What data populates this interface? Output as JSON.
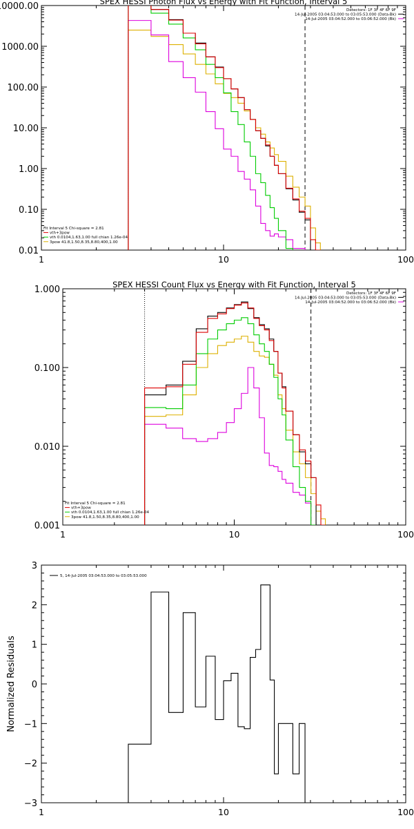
{
  "colors": {
    "data": "#000000",
    "total": "#dd0000",
    "vth": "#00cc00",
    "pow": "#ddb000",
    "bk": "#dd00dd"
  },
  "chart_data": [
    {
      "type": "line",
      "title": "SPEX HESSI Photon Flux vs Energy with Fit Function, Interval 5",
      "xscale": "log",
      "yscale": "log",
      "xlim": [
        1,
        100
      ],
      "ylim": [
        0.01,
        10000
      ],
      "xticklabels": [
        "1",
        "10",
        "100"
      ],
      "yticklabels": [
        "0.01",
        "0.10",
        "1.00",
        "10.00",
        "100.00",
        "1000.00",
        "10000.00"
      ],
      "header_right": [
        "Detectors: 1F 3F 4F 6F 9F",
        "14-Jul-2005 03:04:53.000 to 03:05:53.000 (Data-Bk)",
        "14-Jul-2005 03:04:52.000 to 03:06:52.000 (Bk)"
      ],
      "legend_left": [
        "Fit Interval 5   Chi-square = 2.81",
        "vth+3pow",
        "vth 0.0104,1.63,1.00  full chian 1.26e-04",
        "3pow 41.8,1.50,8.35,8.80,400,1.00"
      ],
      "edges": [
        3.0,
        3.5,
        4.0,
        4.5,
        5.0,
        5.5,
        6.0,
        6.5,
        7.0,
        7.5,
        8.0,
        8.5,
        9.0,
        9.5,
        10.0,
        11.0,
        12.0,
        13.0,
        14.0,
        15.0,
        16.0,
        17.0,
        18.0,
        19.0,
        20.0,
        22.0,
        24.0,
        26.0,
        28.0,
        30.0,
        32.0,
        34.0,
        36.0
      ],
      "vline_dotted": 3.0,
      "vline_dashed": 28.0,
      "series": [
        {
          "color_key": "data",
          "values": [
            12000,
            12000,
            8000,
            8000,
            4500,
            4500,
            2100,
            2100,
            1200,
            1200,
            550,
            550,
            310,
            310,
            160,
            90,
            55,
            28,
            16,
            8.5,
            5.5,
            3.6,
            2.0,
            1.2,
            0.75,
            0.32,
            0.17,
            0.085,
            0.055
          ]
        },
        {
          "color_key": "total",
          "values": [
            12000,
            12000,
            8000,
            8000,
            4400,
            4400,
            2100,
            2100,
            1150,
            1150,
            550,
            550,
            300,
            300,
            160,
            90,
            55,
            28,
            16,
            8.5,
            5.5,
            3.8,
            2.0,
            1.2,
            0.75,
            0.33,
            0.18,
            0.09,
            0.06,
            0.018,
            0.01
          ]
        },
        {
          "color_key": "vth",
          "values": [
            12000,
            12000,
            6500,
            6500,
            3500,
            3500,
            1600,
            1600,
            820,
            820,
            360,
            360,
            170,
            170,
            72,
            25,
            12,
            4.5,
            2.0,
            0.75,
            0.45,
            0.22,
            0.11,
            0.06,
            0.03,
            0.011,
            0.006
          ]
        },
        {
          "color_key": "pow",
          "values": [
            2500,
            2500,
            1750,
            1750,
            1100,
            1100,
            650,
            650,
            360,
            360,
            210,
            210,
            120,
            120,
            70,
            55,
            40,
            26,
            16,
            10,
            7,
            4.5,
            3.2,
            2.2,
            1.5,
            0.65,
            0.35,
            0.2,
            0.12,
            0.035,
            0.015,
            0.008
          ]
        },
        {
          "color_key": "bk",
          "values": [
            4300,
            4300,
            1900,
            1900,
            420,
            420,
            170,
            170,
            75,
            75,
            25,
            25,
            9.5,
            9.5,
            3.0,
            2.0,
            0.85,
            0.55,
            0.3,
            0.12,
            0.045,
            0.03,
            0.022,
            0.025,
            0.021,
            0.018,
            0.011,
            0.011,
            0.009
          ]
        }
      ]
    },
    {
      "type": "line",
      "title": "SPEX HESSI Count Flux vs Energy with Fit Function, Interval 5",
      "xscale": "log",
      "yscale": "log",
      "xlim": [
        1,
        100
      ],
      "ylim": [
        0.001,
        1.0
      ],
      "xticklabels": [
        "1",
        "10",
        "100"
      ],
      "yticklabels": [
        "0.001",
        "0.010",
        "0.100",
        "1.000"
      ],
      "header_right": [
        "Detectors: 1F 3F 4F 6F 9F",
        "14-Jul-2005 03:04:53.000 to 03:05:53.000 (Data-Bk)",
        "14-Jul-2005 03:04:52.000 to 03:06:52.000 (Bk)"
      ],
      "legend_left": [
        "Fit Interval 5   Chi-square = 2.81",
        "vth+3pow",
        "vth 0.0104,1.63,1.00  full chian 1.26e-04",
        "3pow 41.8,1.50,8.35,8.80,400,1.00"
      ],
      "edges": [
        3.0,
        3.5,
        4.0,
        4.5,
        5.0,
        5.5,
        6.0,
        6.5,
        7.0,
        7.5,
        8.0,
        8.5,
        9.0,
        9.5,
        10.0,
        11.0,
        12.0,
        13.0,
        14.0,
        15.0,
        16.0,
        17.0,
        18.0,
        19.0,
        20.0,
        22.0,
        24.0,
        26.0,
        28.0,
        30.0,
        32.0,
        34.0,
        36.0
      ],
      "vline_dotted": 3.0,
      "vline_dashed": 28.0,
      "series": [
        {
          "color_key": "data",
          "values": [
            0.045,
            0.045,
            0.06,
            0.06,
            0.12,
            0.12,
            0.31,
            0.31,
            0.45,
            0.45,
            0.5,
            0.5,
            0.57,
            0.57,
            0.63,
            0.68,
            0.56,
            0.43,
            0.35,
            0.31,
            0.23,
            0.16,
            0.085,
            0.057,
            0.028,
            0.014,
            0.0085,
            0.006,
            0.004
          ]
        },
        {
          "color_key": "total",
          "values": [
            0.055,
            0.055,
            0.057,
            0.057,
            0.11,
            0.11,
            0.28,
            0.28,
            0.42,
            0.42,
            0.48,
            0.48,
            0.56,
            0.56,
            0.62,
            0.66,
            0.57,
            0.42,
            0.34,
            0.3,
            0.22,
            0.16,
            0.085,
            0.055,
            0.028,
            0.014,
            0.009,
            0.0065,
            0.004,
            0.0018,
            0.001
          ]
        },
        {
          "color_key": "vth",
          "values": [
            0.031,
            0.031,
            0.03,
            0.03,
            0.06,
            0.06,
            0.15,
            0.15,
            0.23,
            0.23,
            0.3,
            0.3,
            0.36,
            0.36,
            0.4,
            0.43,
            0.36,
            0.26,
            0.2,
            0.16,
            0.11,
            0.075,
            0.04,
            0.025,
            0.012,
            0.0055,
            0.003,
            0.002,
            0.001
          ]
        },
        {
          "color_key": "pow",
          "values": [
            0.024,
            0.024,
            0.025,
            0.025,
            0.045,
            0.045,
            0.1,
            0.1,
            0.15,
            0.15,
            0.19,
            0.19,
            0.21,
            0.21,
            0.23,
            0.25,
            0.21,
            0.16,
            0.14,
            0.135,
            0.11,
            0.08,
            0.045,
            0.03,
            0.016,
            0.0085,
            0.006,
            0.004,
            0.0025,
            0.0015,
            0.0012,
            0.0009
          ]
        },
        {
          "color_key": "bk",
          "values": [
            0.019,
            0.019,
            0.017,
            0.017,
            0.0125,
            0.0125,
            0.0115,
            0.0115,
            0.0125,
            0.0125,
            0.015,
            0.015,
            0.02,
            0.02,
            0.03,
            0.047,
            0.1,
            0.055,
            0.023,
            0.0082,
            0.0057,
            0.0055,
            0.0048,
            0.0038,
            0.0034,
            0.0026,
            0.0024,
            0.0019,
            0.0008
          ]
        }
      ]
    },
    {
      "type": "line",
      "title": "",
      "xscale": "log",
      "yscale": "linear",
      "xlim": [
        1,
        100
      ],
      "ylim": [
        -3,
        3
      ],
      "xticklabels": [
        "1",
        "10",
        "100"
      ],
      "yticklabels": [
        "−3",
        "−2",
        "−1",
        "0",
        "1",
        "2",
        "3"
      ],
      "ylabel": "Normalized  Residuals",
      "legend_left": [
        "5, 14-Jul-2005 03:04:53.000 to 03:05:53.000"
      ],
      "edges": [
        3.0,
        3.5,
        4.0,
        4.5,
        5.0,
        5.5,
        6.0,
        6.5,
        7.0,
        7.5,
        8.0,
        8.5,
        9.0,
        9.5,
        10.0,
        11.0,
        12.0,
        13.0,
        14.0,
        15.0,
        16.0,
        17.0,
        18.0,
        19.0,
        20.0,
        22.0,
        24.0,
        26.0,
        28.0
      ],
      "series": [
        {
          "color_key": "data",
          "values": [
            -1.52,
            -1.52,
            2.32,
            2.32,
            -0.72,
            -0.72,
            1.8,
            1.8,
            -0.58,
            -0.58,
            0.7,
            0.7,
            -0.9,
            -0.9,
            0.08,
            0.27,
            -1.08,
            -1.13,
            0.67,
            0.87,
            2.5,
            2.5,
            0.1,
            -2.27,
            -1.0,
            -1.0,
            -2.27,
            -1.0
          ]
        }
      ]
    }
  ]
}
